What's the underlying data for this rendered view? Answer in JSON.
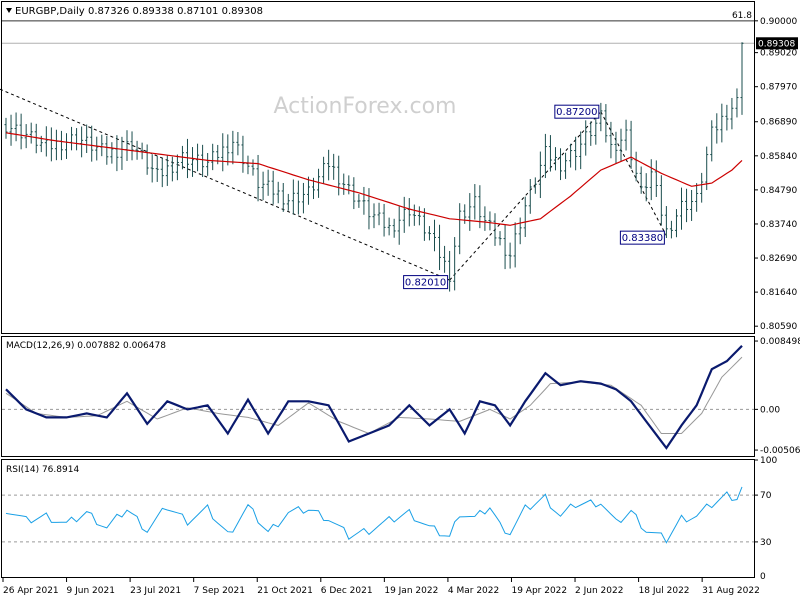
{
  "chart_data": {
    "type": "ohlc",
    "symbol_header": "EURGBP,Daily",
    "ohlc_header": "0.87326 0.89338 0.87101 0.89308",
    "watermark": "ActionForex.com",
    "colors": {
      "bars": "#1a4d4d",
      "sma": "#cc0000",
      "trendline": "#000000",
      "macd": "#0a1a6e",
      "signal": "#999999",
      "rsi": "#1aa0e6",
      "grid": "#9a9a9a",
      "box_border": "#000080"
    },
    "x_ticks": [
      "26 Apr 2021",
      "9 Jun 2021",
      "23 Jul 2021",
      "7 Sep 2021",
      "21 Oct 2021",
      "6 Dec 2021",
      "19 Jan 2022",
      "4 Mar 2022",
      "19 Apr 2022",
      "2 Jun 2022",
      "18 Jul 2022",
      "31 Aug 2022"
    ],
    "price_panel": {
      "ylim": [
        0.8038,
        0.9058
      ],
      "y_ticks": [
        "0.90000",
        "0.89020",
        "0.87970",
        "0.86890",
        "0.85840",
        "0.84790",
        "0.83740",
        "0.82690",
        "0.81640",
        "0.80590"
      ],
      "y_tick_values": [
        0.9,
        0.8902,
        0.8797,
        0.8689,
        0.8584,
        0.8479,
        0.8374,
        0.8269,
        0.8164,
        0.8059
      ],
      "last_price_label": "0.89308",
      "last_price": 0.89308,
      "fib_level": 0.9,
      "fib_label": "61.8",
      "annotations": [
        {
          "label": "0.82010",
          "value": 0.8201,
          "bar": 88
        },
        {
          "label": "0.87200",
          "value": 0.872,
          "bar": 118
        },
        {
          "label": "0.83380",
          "value": 0.8338,
          "bar": 131
        }
      ],
      "trendline": {
        "from_bar": 0,
        "from_value": 0.878,
        "to_bar": 88,
        "to_value": 0.8201
      },
      "close_keypoints": [
        [
          0,
          0.868
        ],
        [
          4,
          0.865
        ],
        [
          8,
          0.861
        ],
        [
          14,
          0.864
        ],
        [
          20,
          0.859
        ],
        [
          25,
          0.862
        ],
        [
          30,
          0.852
        ],
        [
          35,
          0.858
        ],
        [
          40,
          0.856
        ],
        [
          45,
          0.863
        ],
        [
          50,
          0.85
        ],
        [
          56,
          0.845
        ],
        [
          60,
          0.847
        ],
        [
          64,
          0.856
        ],
        [
          68,
          0.848
        ],
        [
          72,
          0.841
        ],
        [
          76,
          0.836
        ],
        [
          80,
          0.842
        ],
        [
          84,
          0.834
        ],
        [
          88,
          0.822
        ],
        [
          90,
          0.84
        ],
        [
          93,
          0.844
        ],
        [
          95,
          0.838
        ],
        [
          98,
          0.832
        ],
        [
          100,
          0.828
        ],
        [
          103,
          0.843
        ],
        [
          107,
          0.859
        ],
        [
          110,
          0.856
        ],
        [
          113,
          0.86
        ],
        [
          118,
          0.87
        ],
        [
          120,
          0.861
        ],
        [
          123,
          0.865
        ],
        [
          126,
          0.847
        ],
        [
          128,
          0.853
        ],
        [
          131,
          0.835
        ],
        [
          134,
          0.843
        ],
        [
          137,
          0.845
        ],
        [
          140,
          0.865
        ],
        [
          143,
          0.872
        ],
        [
          145,
          0.875
        ],
        [
          146,
          0.8931
        ]
      ],
      "sma_keypoints": [
        [
          0,
          0.8655
        ],
        [
          10,
          0.863
        ],
        [
          20,
          0.861
        ],
        [
          30,
          0.859
        ],
        [
          40,
          0.857
        ],
        [
          50,
          0.856
        ],
        [
          60,
          0.851
        ],
        [
          70,
          0.847
        ],
        [
          80,
          0.842
        ],
        [
          88,
          0.839
        ],
        [
          95,
          0.838
        ],
        [
          100,
          0.837
        ],
        [
          106,
          0.839
        ],
        [
          112,
          0.846
        ],
        [
          118,
          0.854
        ],
        [
          124,
          0.858
        ],
        [
          130,
          0.853
        ],
        [
          136,
          0.849
        ],
        [
          140,
          0.85
        ],
        [
          144,
          0.854
        ],
        [
          146,
          0.857
        ]
      ]
    },
    "macd_panel": {
      "header": "MACD(12,26,9) 0.007882 0.006478",
      "ylim": [
        -0.0058,
        0.009
      ],
      "y_ticks": [
        "0.008498",
        "0.00",
        "-0.005062"
      ],
      "y_tick_values": [
        0.008498,
        0.0,
        -0.005062
      ],
      "macd_keypoints": [
        [
          0,
          0.0025
        ],
        [
          4,
          0.0
        ],
        [
          8,
          -0.001
        ],
        [
          12,
          -0.001
        ],
        [
          16,
          -0.0005
        ],
        [
          20,
          -0.001
        ],
        [
          24,
          0.002
        ],
        [
          28,
          -0.0018
        ],
        [
          32,
          0.001
        ],
        [
          36,
          0.0
        ],
        [
          40,
          0.0005
        ],
        [
          44,
          -0.003
        ],
        [
          48,
          0.0012
        ],
        [
          52,
          -0.003
        ],
        [
          56,
          0.001
        ],
        [
          60,
          0.001
        ],
        [
          64,
          0.0005
        ],
        [
          68,
          -0.004
        ],
        [
          72,
          -0.003
        ],
        [
          76,
          -0.002
        ],
        [
          80,
          0.0005
        ],
        [
          84,
          -0.002
        ],
        [
          88,
          0.0
        ],
        [
          91,
          -0.003
        ],
        [
          94,
          0.001
        ],
        [
          97,
          0.0005
        ],
        [
          100,
          -0.002
        ],
        [
          103,
          0.001
        ],
        [
          107,
          0.0045
        ],
        [
          110,
          0.003
        ],
        [
          114,
          0.0035
        ],
        [
          118,
          0.0032
        ],
        [
          121,
          0.0025
        ],
        [
          124,
          0.001
        ],
        [
          127,
          -0.0015
        ],
        [
          131,
          -0.0048
        ],
        [
          134,
          -0.002
        ],
        [
          137,
          0.0005
        ],
        [
          140,
          0.005
        ],
        [
          143,
          0.006
        ],
        [
          146,
          0.0079
        ]
      ],
      "signal_keypoints": [
        [
          0,
          0.002
        ],
        [
          6,
          -0.0005
        ],
        [
          12,
          -0.001
        ],
        [
          18,
          -0.0008
        ],
        [
          24,
          0.001
        ],
        [
          30,
          -0.0012
        ],
        [
          36,
          0.0002
        ],
        [
          42,
          -0.0005
        ],
        [
          48,
          -0.001
        ],
        [
          54,
          -0.002
        ],
        [
          60,
          0.0008
        ],
        [
          66,
          -0.0015
        ],
        [
          72,
          -0.003
        ],
        [
          78,
          -0.001
        ],
        [
          84,
          -0.0012
        ],
        [
          90,
          -0.0015
        ],
        [
          96,
          0.0
        ],
        [
          100,
          -0.0012
        ],
        [
          104,
          0.0005
        ],
        [
          108,
          0.0032
        ],
        [
          114,
          0.0034
        ],
        [
          120,
          0.003
        ],
        [
          126,
          0.0005
        ],
        [
          130,
          -0.003
        ],
        [
          134,
          -0.003
        ],
        [
          138,
          -0.0005
        ],
        [
          142,
          0.004
        ],
        [
          146,
          0.0065
        ]
      ]
    },
    "rsi_panel": {
      "header": "RSI(14) 76.8914",
      "ylim": [
        0,
        100
      ],
      "y_ticks": [
        "100",
        "70",
        "30",
        "0"
      ],
      "y_tick_values": [
        100,
        70,
        30,
        0
      ],
      "rsi_keypoints": [
        [
          0,
          58
        ],
        [
          4,
          48
        ],
        [
          8,
          52
        ],
        [
          12,
          45
        ],
        [
          16,
          55
        ],
        [
          20,
          42
        ],
        [
          24,
          58
        ],
        [
          28,
          40
        ],
        [
          32,
          60
        ],
        [
          36,
          48
        ],
        [
          40,
          58
        ],
        [
          44,
          36
        ],
        [
          48,
          60
        ],
        [
          52,
          38
        ],
        [
          56,
          55
        ],
        [
          60,
          58
        ],
        [
          64,
          50
        ],
        [
          68,
          35
        ],
        [
          72,
          40
        ],
        [
          76,
          48
        ],
        [
          80,
          55
        ],
        [
          84,
          42
        ],
        [
          88,
          34
        ],
        [
          90,
          55
        ],
        [
          93,
          50
        ],
        [
          96,
          60
        ],
        [
          98,
          44
        ],
        [
          100,
          38
        ],
        [
          103,
          58
        ],
        [
          107,
          68
        ],
        [
          110,
          52
        ],
        [
          113,
          62
        ],
        [
          118,
          64
        ],
        [
          121,
          46
        ],
        [
          124,
          56
        ],
        [
          127,
          40
        ],
        [
          131,
          32
        ],
        [
          134,
          50
        ],
        [
          137,
          52
        ],
        [
          140,
          62
        ],
        [
          143,
          70
        ],
        [
          145,
          68
        ],
        [
          146,
          77
        ]
      ]
    },
    "n_bars": 147
  }
}
